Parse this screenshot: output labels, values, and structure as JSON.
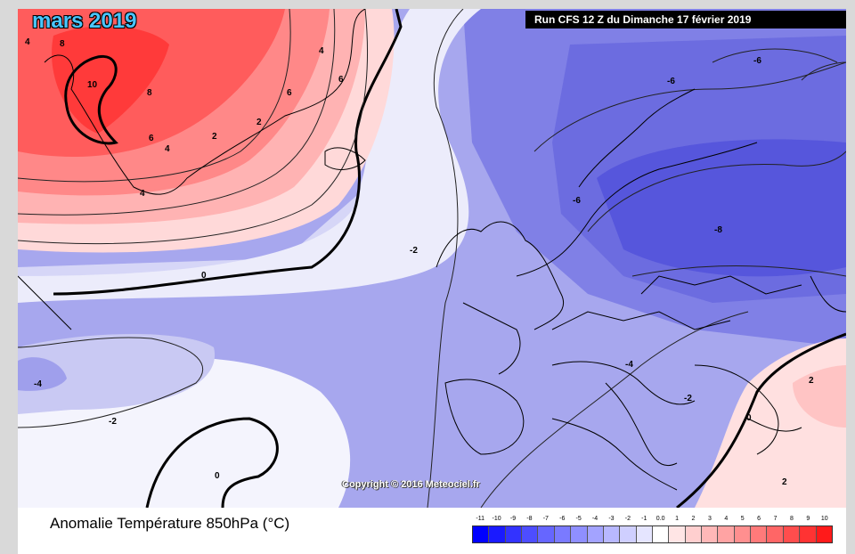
{
  "title": "mars 2019",
  "run_info": "Run CFS 12 Z du Dimanche 17 février 2019",
  "copyright": "Copyright © 2016 Meteociel.fr",
  "variable_label": "Anomalie Température 850hPa (°C)",
  "contour_labels": {
    "greenland_8": "8",
    "greenland_10": "10",
    "greenland_8b": "8",
    "greenland_6": "6",
    "greenland_4": "4",
    "greenland_2": "2",
    "greenland_4b": "4",
    "greenland_6b": "6",
    "greenland_2b": "2",
    "greenland_4c": "4",
    "greenland_6c": "6",
    "greenland_4d": "4",
    "atlantic_0": "0",
    "atlantic_m2": "-2",
    "west_m4": "-4",
    "west_m2": "-2",
    "south_0": "0",
    "north_m6": "-6",
    "norway_m6": "-6",
    "scand_m6": "-6",
    "east_m8": "-8",
    "europe_m4": "-4",
    "balkan_m2": "-2",
    "turkey_0": "0",
    "east_2": "2",
    "east_2b": "2"
  },
  "legend": {
    "ticks": [
      "-11",
      "-10",
      "-9",
      "-8",
      "-7",
      "-6",
      "-5",
      "-4",
      "-3",
      "-2",
      "-1",
      "0.0",
      "1",
      "2",
      "3",
      "4",
      "5",
      "6",
      "7",
      "8",
      "9",
      "10"
    ],
    "colors": [
      "#0000ff",
      "#1a1aff",
      "#3333ff",
      "#4d4dff",
      "#6666ff",
      "#7a7aff",
      "#8f8fff",
      "#a3a3ff",
      "#b8b8ff",
      "#cfcfff",
      "#e5e5ff",
      "#ffffff",
      "#ffe5e5",
      "#ffcfcf",
      "#ffb8b8",
      "#ffa3a3",
      "#ff8f8f",
      "#ff7a7a",
      "#ff6666",
      "#ff4d4d",
      "#ff3333",
      "#ff1a1a"
    ]
  }
}
